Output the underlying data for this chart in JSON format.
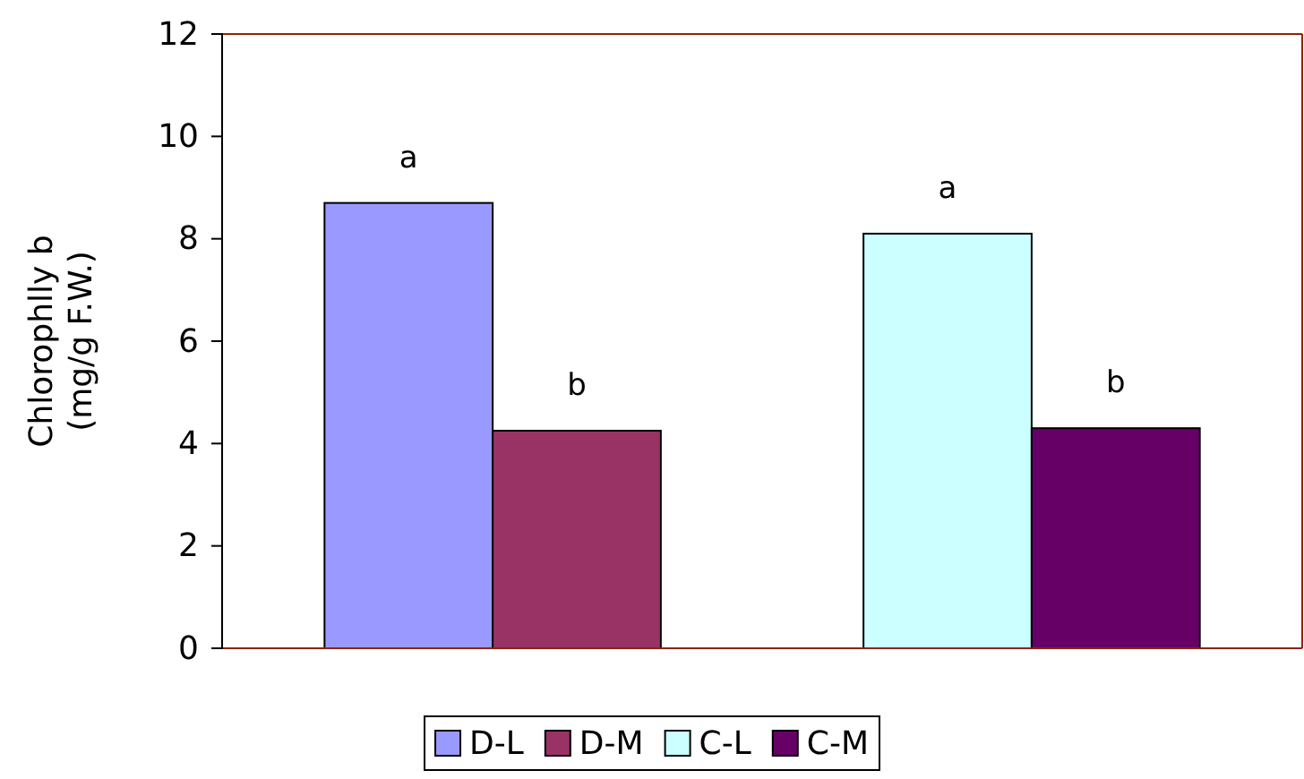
{
  "chart_data": {
    "type": "bar",
    "ylabel": "Chlorophlly b\n(mg/g F.W.)",
    "categories": [
      null,
      null
    ],
    "series": [
      {
        "name": "D-L",
        "color": "#9999ff",
        "values": [
          8.7,
          null
        ],
        "value_labels": [
          "a",
          null
        ]
      },
      {
        "name": "D-M",
        "color": "#993366",
        "values": [
          4.25,
          null
        ],
        "value_labels": [
          "b",
          null
        ]
      },
      {
        "name": "C-L",
        "color": "#ccffff",
        "values": [
          null,
          8.1
        ],
        "value_labels": [
          null,
          "a"
        ]
      },
      {
        "name": "C-M",
        "color": "#660066",
        "values": [
          null,
          4.3
        ],
        "value_labels": [
          null,
          "b"
        ]
      }
    ],
    "ylim": [
      0,
      12
    ],
    "yticks": [
      0,
      2,
      4,
      6,
      8,
      10,
      12
    ],
    "grid": false,
    "legend": "bottom"
  }
}
